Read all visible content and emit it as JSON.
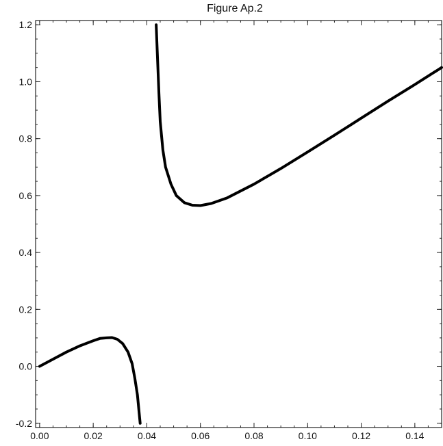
{
  "chart_data": {
    "type": "line",
    "title": "Figure Ap.2",
    "xlabel": "",
    "ylabel": "",
    "xlim": [
      -0.0015,
      0.15
    ],
    "ylim": [
      -0.215,
      1.215
    ],
    "grid": false,
    "legend": "none",
    "x_major_ticks": [
      {
        "value": 0.0,
        "label": "0.00"
      },
      {
        "value": 0.02,
        "label": "0.02"
      },
      {
        "value": 0.04,
        "label": "0.04"
      },
      {
        "value": 0.06,
        "label": "0.06"
      },
      {
        "value": 0.08,
        "label": "0.08"
      },
      {
        "value": 0.1,
        "label": "0.10"
      },
      {
        "value": 0.12,
        "label": "0.12"
      },
      {
        "value": 0.14,
        "label": "0.14"
      }
    ],
    "y_major_ticks": [
      {
        "value": -0.2,
        "label": "-0.2"
      },
      {
        "value": 0.0,
        "label": "0.0"
      },
      {
        "value": 0.2,
        "label": "0.2"
      },
      {
        "value": 0.4,
        "label": "0.4"
      },
      {
        "value": 0.6,
        "label": "0.6"
      },
      {
        "value": 0.8,
        "label": "0.8"
      },
      {
        "value": 1.0,
        "label": "1.0"
      },
      {
        "value": 1.2,
        "label": "1.2"
      }
    ],
    "x_minor_step": 0.005,
    "y_minor_step": 0.05,
    "series": [
      {
        "color": "#000000",
        "points": [
          [
            0.0,
            0.0
          ],
          [
            0.005,
            0.025
          ],
          [
            0.01,
            0.05
          ],
          [
            0.015,
            0.072
          ],
          [
            0.02,
            0.09
          ],
          [
            0.0225,
            0.098
          ],
          [
            0.025,
            0.1
          ],
          [
            0.027,
            0.101
          ],
          [
            0.029,
            0.095
          ],
          [
            0.031,
            0.08
          ],
          [
            0.033,
            0.05
          ],
          [
            0.0345,
            0.01
          ],
          [
            0.0355,
            -0.04
          ],
          [
            0.0365,
            -0.1
          ],
          [
            0.0375,
            -0.2
          ]
        ]
      },
      {
        "color": "#000000",
        "points": [
          [
            0.0435,
            1.2
          ],
          [
            0.044,
            1.08
          ],
          [
            0.0445,
            0.96
          ],
          [
            0.045,
            0.86
          ],
          [
            0.046,
            0.76
          ],
          [
            0.047,
            0.7
          ],
          [
            0.049,
            0.64
          ],
          [
            0.051,
            0.6
          ],
          [
            0.054,
            0.575
          ],
          [
            0.057,
            0.566
          ],
          [
            0.06,
            0.565
          ],
          [
            0.064,
            0.572
          ],
          [
            0.07,
            0.592
          ],
          [
            0.08,
            0.64
          ],
          [
            0.09,
            0.695
          ],
          [
            0.1,
            0.753
          ],
          [
            0.11,
            0.812
          ],
          [
            0.12,
            0.872
          ],
          [
            0.13,
            0.932
          ],
          [
            0.14,
            0.99
          ],
          [
            0.15,
            1.05
          ]
        ]
      }
    ]
  }
}
